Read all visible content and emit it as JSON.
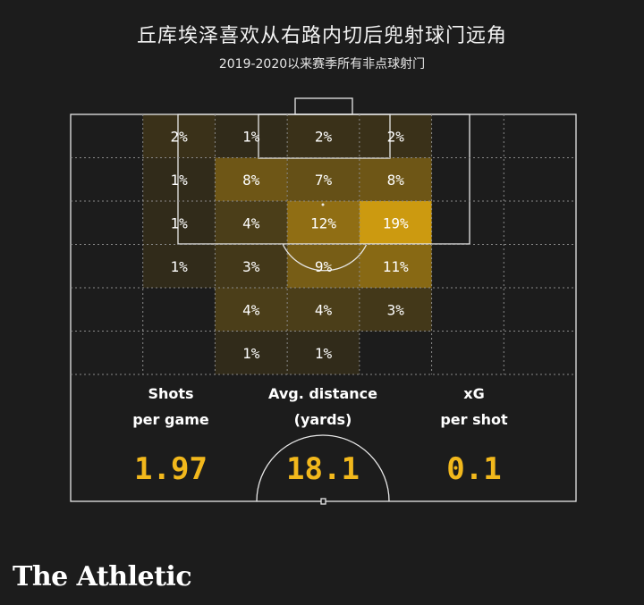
{
  "header": {
    "title": "丘库埃泽喜欢从右路内切后兜射球门远角",
    "subtitle": "2019-2020以来赛季所有非点球射门"
  },
  "chart_data": {
    "type": "heatmap",
    "title": "丘库埃泽喜欢从右路内切后兜射球门远角",
    "subtitle": "2019-2020以来赛季所有非点球射门",
    "grid": {
      "columns": 7,
      "rows": 6
    },
    "unit": "%",
    "colors": {
      "cell": "#e0a80f",
      "label": "#ffffff",
      "line": "#e8e8e8",
      "stat": "#f2b81c"
    },
    "cells": [
      {
        "row": 0,
        "col": 1,
        "value": 2,
        "label": "2%"
      },
      {
        "row": 0,
        "col": 2,
        "value": 1,
        "label": "1%"
      },
      {
        "row": 0,
        "col": 3,
        "value": 2,
        "label": "2%"
      },
      {
        "row": 0,
        "col": 4,
        "value": 2,
        "label": "2%"
      },
      {
        "row": 1,
        "col": 1,
        "value": 1,
        "label": "1%"
      },
      {
        "row": 1,
        "col": 2,
        "value": 8,
        "label": "8%"
      },
      {
        "row": 1,
        "col": 3,
        "value": 7,
        "label": "7%"
      },
      {
        "row": 1,
        "col": 4,
        "value": 8,
        "label": "8%"
      },
      {
        "row": 2,
        "col": 1,
        "value": 1,
        "label": "1%"
      },
      {
        "row": 2,
        "col": 2,
        "value": 4,
        "label": "4%"
      },
      {
        "row": 2,
        "col": 3,
        "value": 12,
        "label": "12%"
      },
      {
        "row": 2,
        "col": 4,
        "value": 19,
        "label": "19%"
      },
      {
        "row": 3,
        "col": 1,
        "value": 1,
        "label": "1%"
      },
      {
        "row": 3,
        "col": 2,
        "value": 3,
        "label": "3%"
      },
      {
        "row": 3,
        "col": 3,
        "value": 9,
        "label": "9%"
      },
      {
        "row": 3,
        "col": 4,
        "value": 11,
        "label": "11%"
      },
      {
        "row": 4,
        "col": 2,
        "value": 4,
        "label": "4%"
      },
      {
        "row": 4,
        "col": 3,
        "value": 4,
        "label": "4%"
      },
      {
        "row": 4,
        "col": 4,
        "value": 3,
        "label": "3%"
      },
      {
        "row": 5,
        "col": 2,
        "value": 1,
        "label": "1%"
      },
      {
        "row": 5,
        "col": 3,
        "value": 1,
        "label": "1%"
      }
    ],
    "stats": [
      {
        "label_line1": "Shots",
        "label_line2": "per game",
        "value": "1.97"
      },
      {
        "label_line1": "Avg. distance",
        "label_line2": "(yards)",
        "value": "18.1"
      },
      {
        "label_line1": "xG",
        "label_line2": "per shot",
        "value": "0.1"
      }
    ]
  },
  "footer": {
    "brand": "The Athletic"
  }
}
